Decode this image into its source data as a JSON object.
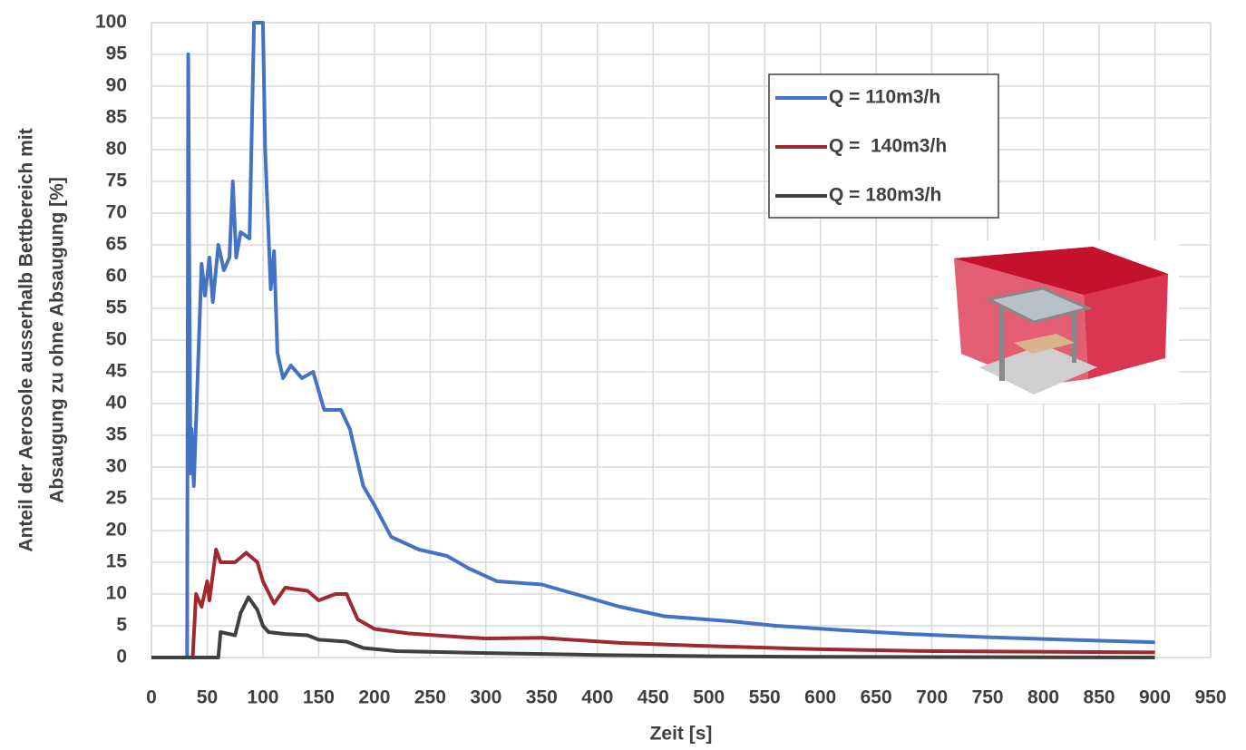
{
  "chart_data": {
    "type": "line",
    "x_label": "Zeit [s]",
    "y_label": [
      "Anteil der Aerosole ausserhalb Bettbereich mit",
      "Absaugung zu ohne Absaugung [%]"
    ],
    "xlim": [
      0,
      950
    ],
    "xticks": [
      0,
      50,
      100,
      150,
      200,
      250,
      300,
      350,
      400,
      450,
      500,
      550,
      600,
      650,
      700,
      750,
      800,
      850,
      900,
      950
    ],
    "ylim": [
      0,
      100
    ],
    "yticks": [
      0,
      5,
      10,
      15,
      20,
      25,
      30,
      35,
      40,
      45,
      50,
      55,
      60,
      65,
      70,
      75,
      80,
      85,
      90,
      95,
      100
    ],
    "grid": true,
    "legend": "upper right",
    "series": [
      {
        "name": "Q = 110m3/h",
        "color": "#4472c4",
        "x": [
          0,
          32,
          33,
          35,
          36,
          38,
          45,
          48,
          52,
          55,
          60,
          65,
          70,
          73,
          76,
          80,
          88,
          92,
          100,
          102,
          107,
          110,
          113,
          118,
          125,
          135,
          145,
          155,
          170,
          178,
          190,
          200,
          215,
          240,
          265,
          285,
          310,
          350,
          380,
          420,
          460,
          520,
          560,
          620,
          680,
          750,
          820,
          900
        ],
        "values": [
          0,
          0,
          95,
          29,
          36,
          27,
          62,
          57,
          63,
          56,
          65,
          61,
          63,
          75,
          63,
          67,
          66,
          100,
          100,
          80,
          58,
          64,
          48,
          44,
          46,
          44,
          45,
          39,
          39,
          36,
          27,
          24,
          19,
          17,
          16,
          14,
          12,
          11.5,
          10,
          8,
          6.5,
          5.7,
          5,
          4.3,
          3.7,
          3.2,
          2.8,
          2.4
        ]
      },
      {
        "name": "Q =  140m3/h",
        "color": "#a0282f",
        "x": [
          0,
          37,
          40,
          45,
          50,
          52,
          58,
          62,
          75,
          85,
          95,
          100,
          110,
          120,
          140,
          150,
          165,
          175,
          185,
          200,
          230,
          280,
          300,
          350,
          420,
          500,
          600,
          700,
          900
        ],
        "values": [
          0,
          0,
          10,
          8,
          12,
          9,
          17,
          15,
          15,
          16.5,
          15,
          12,
          8.5,
          11,
          10.5,
          9,
          10,
          10,
          6,
          4.5,
          3.8,
          3.2,
          3,
          3.1,
          2.3,
          1.8,
          1.3,
          1,
          0.8
        ]
      },
      {
        "name": "Q = 180m3/h",
        "color": "#404040",
        "x": [
          0,
          60,
          62,
          75,
          80,
          87,
          95,
          100,
          105,
          120,
          140,
          150,
          175,
          190,
          220,
          300,
          400,
          500,
          600,
          900
        ],
        "values": [
          0,
          0,
          4,
          3.5,
          7,
          9.5,
          7.5,
          5,
          4,
          3.7,
          3.5,
          2.8,
          2.5,
          1.5,
          1,
          0.7,
          0.4,
          0.2,
          0.1,
          0
        ]
      }
    ]
  }
}
